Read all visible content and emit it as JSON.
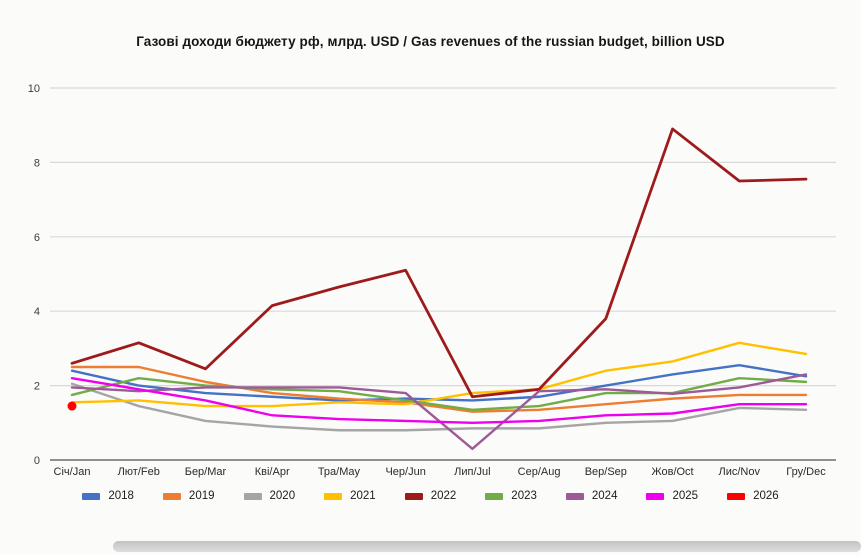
{
  "title": "Газові доходи бюджету рф, млрд. USD / Gas revenues of the russian budget, billion USD",
  "chart_data": {
    "type": "line",
    "title": "Газові доходи бюджету рф, млрд. USD / Gas revenues of the russian budget, billion USD",
    "xlabel": "",
    "ylabel": "",
    "ylim": [
      0,
      10
    ],
    "yticks": [
      0,
      2,
      4,
      6,
      8,
      10
    ],
    "grid": true,
    "legend_position": "bottom",
    "categories": [
      "Січ/Jan",
      "Лют/Feb",
      "Бер/Mar",
      "Кві/Apr",
      "Тра/May",
      "Чер/Jun",
      "Лип/Jul",
      "Сер/Aug",
      "Вер/Sep",
      "Жов/Oct",
      "Лис/Nov",
      "Гру/Dec"
    ],
    "series": [
      {
        "name": "2018",
        "color": "#4472c4",
        "values": [
          2.4,
          2.0,
          1.8,
          1.7,
          1.6,
          1.65,
          1.6,
          1.7,
          2.0,
          2.3,
          2.55,
          2.25
        ]
      },
      {
        "name": "2019",
        "color": "#ed7d31",
        "values": [
          2.5,
          2.5,
          2.1,
          1.8,
          1.65,
          1.55,
          1.3,
          1.35,
          1.5,
          1.65,
          1.75,
          1.75
        ]
      },
      {
        "name": "2020",
        "color": "#a5a5a5",
        "values": [
          2.05,
          1.45,
          1.05,
          0.9,
          0.8,
          0.8,
          0.85,
          0.85,
          1.0,
          1.05,
          1.4,
          1.35
        ]
      },
      {
        "name": "2021",
        "color": "#ffc000",
        "values": [
          1.55,
          1.6,
          1.45,
          1.45,
          1.55,
          1.5,
          1.8,
          1.9,
          2.4,
          2.65,
          3.15,
          2.85
        ]
      },
      {
        "name": "2022",
        "color": "#9e1b1b",
        "values": [
          2.6,
          3.15,
          2.45,
          4.15,
          4.65,
          5.1,
          1.7,
          1.9,
          3.8,
          8.9,
          7.5,
          7.55
        ]
      },
      {
        "name": "2023",
        "color": "#70ad47",
        "values": [
          1.75,
          2.2,
          2.0,
          1.9,
          1.85,
          1.6,
          1.35,
          1.45,
          1.8,
          1.8,
          2.2,
          2.1
        ]
      },
      {
        "name": "2024",
        "color": "#9e5a97",
        "values": [
          1.95,
          1.85,
          1.95,
          1.95,
          1.95,
          1.8,
          0.3,
          1.85,
          1.9,
          1.78,
          1.95,
          2.3
        ]
      },
      {
        "name": "2025",
        "color": "#ee00ee",
        "values": [
          2.2,
          1.9,
          1.6,
          1.2,
          1.1,
          1.05,
          1.0,
          1.05,
          1.2,
          1.25,
          1.5,
          1.5
        ]
      },
      {
        "name": "2026",
        "color": "#fe0000",
        "type": "point",
        "values": [
          1.45,
          null,
          null,
          null,
          null,
          null,
          null,
          null,
          null,
          null,
          null,
          null
        ]
      }
    ]
  }
}
